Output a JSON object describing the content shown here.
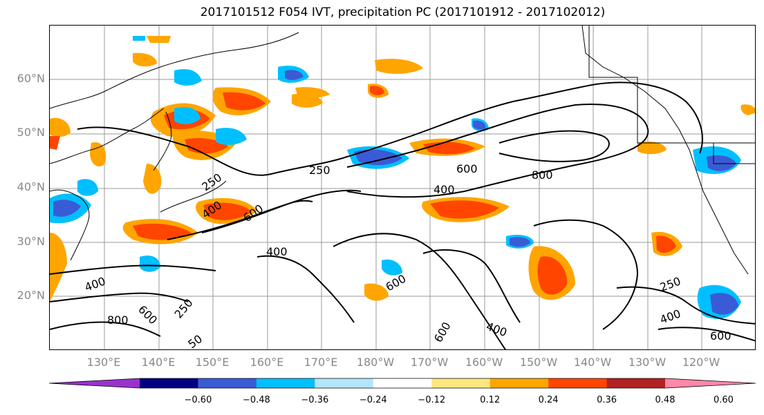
{
  "title": "2017101512 F054 IVT, precipitation PC (2017101912 - 2017102012)",
  "lat_labels": [
    "60°N",
    "50°N",
    "40°N",
    "30°N",
    "20°N"
  ],
  "lon_labels": [
    "130°E",
    "140°E",
    "150°E",
    "160°E",
    "170°E",
    "180°W",
    "170°W",
    "160°W",
    "150°W",
    "140°W",
    "130°W",
    "120°W"
  ],
  "colorbar": {
    "ticks": [
      "−0.60",
      "−0.48",
      "−0.36",
      "−0.24",
      "−0.12",
      "0.12",
      "0.24",
      "0.36",
      "0.48",
      "0.60"
    ],
    "colors": [
      "#9933cc",
      "#000080",
      "#3a5bd6",
      "#00bfff",
      "#b3e5fc",
      "#ffffff",
      "#ffe680",
      "#ffa500",
      "#ff4500",
      "#b22222",
      "#ff88aa"
    ]
  },
  "contour_labels": [
    "250",
    "250",
    "400",
    "400",
    "600",
    "600",
    "800",
    "400",
    "600",
    "400",
    "600",
    "250",
    "400",
    "600",
    "250",
    "800",
    "600",
    "400",
    "50"
  ],
  "colors": {
    "ivt_contour": "#000000",
    "coastline": "#000000",
    "grid": "#999999"
  }
}
